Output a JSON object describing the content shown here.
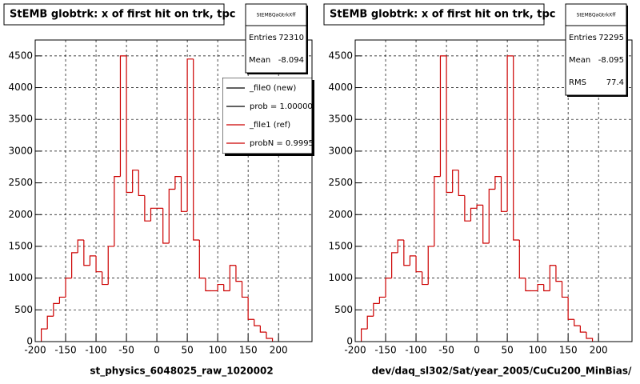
{
  "chart_data": [
    {
      "type": "histogram",
      "title": "StEMB globtrk: x of first hit on trk, tpc",
      "x_label": "st_physics_6048025_raw_1020002",
      "bins": [
        -190,
        -180,
        -170,
        -160,
        -150,
        -140,
        -130,
        -120,
        -110,
        -100,
        -90,
        -80,
        -70,
        -60,
        -50,
        -40,
        -30,
        -20,
        -10,
        0,
        10,
        20,
        30,
        40,
        50,
        60,
        70,
        80,
        90,
        100,
        110,
        120,
        130,
        140,
        150,
        160,
        170,
        180,
        190
      ],
      "series": [
        {
          "name": "_file1 (ref)",
          "color": "#cc0000",
          "values": [
            200,
            400,
            600,
            700,
            1000,
            1400,
            1600,
            1200,
            1350,
            1100,
            900,
            1500,
            2600,
            4500,
            2350,
            2700,
            2300,
            1900,
            2100,
            2100,
            1550,
            2400,
            2600,
            2050,
            4450,
            1600,
            1000,
            800,
            800,
            900,
            800,
            1200,
            950,
            700,
            350,
            250,
            150,
            50
          ]
        }
      ],
      "xlim": [
        -200,
        255
      ],
      "ylim": [
        0,
        4750
      ],
      "xticks": [
        -200,
        -150,
        -100,
        -50,
        0,
        50,
        100,
        150,
        200
      ],
      "yticks": [
        0,
        500,
        1000,
        1500,
        2000,
        2500,
        3000,
        3500,
        4000,
        4500
      ],
      "grid": true,
      "stats": {
        "title": "StEMBQaGtrkXff",
        "rows": [
          {
            "label": "Entries",
            "value": 72310
          },
          {
            "label": "Mean",
            "value": -8.094
          }
        ]
      },
      "legend": [
        {
          "label": "_file0 (new)",
          "color": "#000000"
        },
        {
          "label": "prob = 1.000000",
          "color": "#000000"
        },
        {
          "label": "_file1 (ref)",
          "color": "#cc0000"
        },
        {
          "label": "probN = 0.99950",
          "color": "#cc0000"
        }
      ]
    },
    {
      "type": "histogram",
      "title": "StEMB globtrk: x of first hit on trk, tpc",
      "x_label": "dev/daq_sl302/Sat/year_2005/CuCu200_MinBias/",
      "bins": [
        -190,
        -180,
        -170,
        -160,
        -150,
        -140,
        -130,
        -120,
        -110,
        -100,
        -90,
        -80,
        -70,
        -60,
        -50,
        -40,
        -30,
        -20,
        -10,
        0,
        10,
        20,
        30,
        40,
        50,
        60,
        70,
        80,
        90,
        100,
        110,
        120,
        130,
        140,
        150,
        160,
        170,
        180,
        190
      ],
      "series": [
        {
          "name": "_file1 (ref)",
          "color": "#cc0000",
          "values": [
            200,
            400,
            600,
            700,
            1000,
            1400,
            1600,
            1200,
            1350,
            1100,
            900,
            1500,
            2600,
            4500,
            2350,
            2700,
            2300,
            1900,
            2100,
            2150,
            1550,
            2400,
            2600,
            2050,
            4500,
            1600,
            1000,
            800,
            800,
            900,
            800,
            1200,
            950,
            700,
            350,
            250,
            150,
            50
          ]
        }
      ],
      "xlim": [
        -200,
        255
      ],
      "ylim": [
        0,
        4750
      ],
      "xticks": [
        -200,
        -150,
        -100,
        -50,
        0,
        50,
        100,
        150,
        200
      ],
      "yticks": [
        0,
        500,
        1000,
        1500,
        2000,
        2500,
        3000,
        3500,
        4000,
        4500
      ],
      "grid": true,
      "stats": {
        "title": "StEMBQaGtrkXff",
        "rows": [
          {
            "label": "Entries",
            "value": 72295
          },
          {
            "label": "Mean",
            "value": -8.095
          },
          {
            "label": "RMS",
            "value": 77.4
          }
        ]
      }
    }
  ]
}
